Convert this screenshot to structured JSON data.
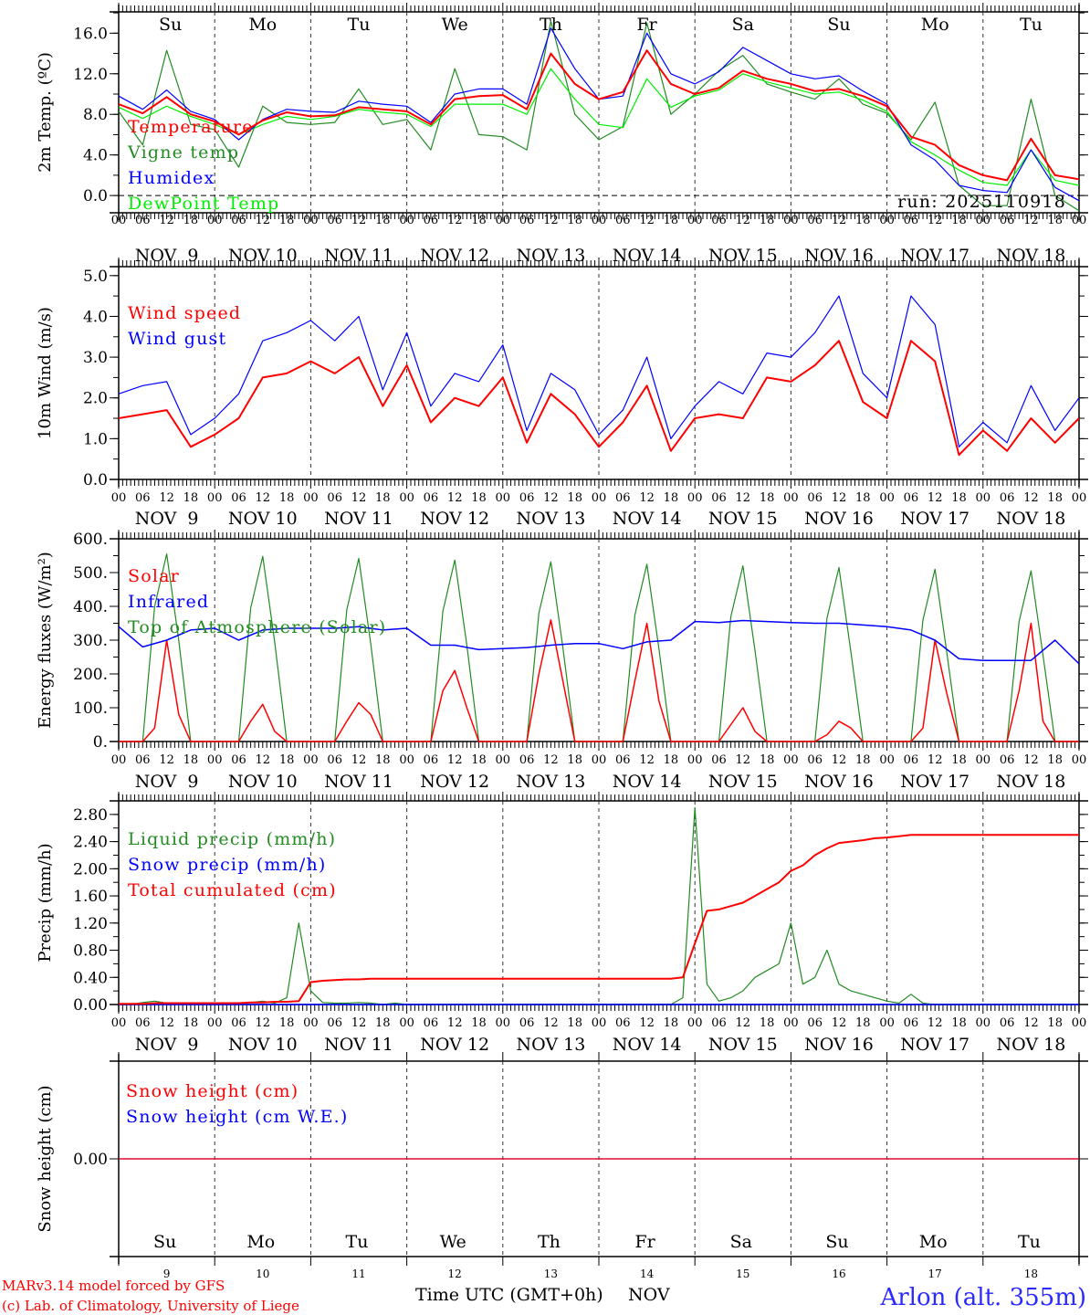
{
  "x_axis": {
    "hour_labels": [
      "00",
      "06",
      "12",
      "18"
    ],
    "date_labels": [
      "NOV  9",
      "NOV 10",
      "NOV 11",
      "NOV 12",
      "NOV 13",
      "NOV 14",
      "NOV 15",
      "NOV 16",
      "NOV 17",
      "NOV 18"
    ],
    "day_of_week": [
      {
        "label": "Su",
        "weekend": true
      },
      {
        "label": "Mo",
        "weekend": false
      },
      {
        "label": "Tu",
        "weekend": false
      },
      {
        "label": "We",
        "weekend": false
      },
      {
        "label": "Th",
        "weekend": false
      },
      {
        "label": "Fr",
        "weekend": false
      },
      {
        "label": "Sa",
        "weekend": true
      },
      {
        "label": "Su",
        "weekend": true
      },
      {
        "label": "Mo",
        "weekend": false
      },
      {
        "label": "Tu",
        "weekend": false
      }
    ],
    "day_numbers": [
      "9",
      "10",
      "11",
      "12",
      "13",
      "14",
      "15",
      "16",
      "17",
      "18"
    ],
    "title": "Time UTC (GMT+0h)",
    "month": "NOV"
  },
  "footer": {
    "model": "MARv3.14 model forced by GFS",
    "credit": "(c) Lab. of Climatology, University of Liege",
    "location": "Arlon (alt. 355m)"
  },
  "colors": {
    "red": "#ff0000",
    "green": "#228b22",
    "blue": "#0000ff",
    "lightgreen": "#00ee00"
  },
  "chart_data": [
    {
      "type": "line",
      "ylabel": "2m Temp. (ºC)",
      "ylim": [
        -1.7,
        18.1
      ],
      "ticks": [
        {
          "v": 0,
          "label": "0.0"
        },
        {
          "v": 4,
          "label": "4.0"
        },
        {
          "v": 8,
          "label": "8.0"
        },
        {
          "v": 12,
          "label": "12.0"
        },
        {
          "v": 16,
          "label": "16.0"
        }
      ],
      "minor_step": 2,
      "zero_line": true,
      "annotation": "run: 2025110918",
      "series": [
        {
          "name": "Vigne temp",
          "color": "#228b22",
          "width": 1.2,
          "step_hours": 6,
          "values": [
            8.3,
            5.0,
            14.3,
            7.0,
            6.5,
            2.8,
            8.8,
            7.2,
            7.0,
            7.2,
            10.5,
            7.0,
            7.5,
            4.5,
            12.5,
            6.0,
            5.8,
            4.5,
            17.2,
            8.0,
            5.5,
            6.8,
            17.0,
            8.0,
            10.0,
            12.3,
            13.8,
            11.0,
            10.2,
            9.5,
            11.5,
            9.0,
            8.1,
            5.5,
            9.2,
            1.0,
            -1.0,
            -1.0,
            9.5,
            0.0,
            -1.5
          ]
        },
        {
          "name": "DewPoint Temp",
          "color": "#00ee00",
          "width": 1.2,
          "step_hours": 6,
          "values": [
            8.7,
            7.6,
            8.8,
            7.8,
            7.0,
            6.0,
            7.0,
            7.8,
            7.5,
            7.8,
            8.5,
            8.2,
            8.0,
            6.8,
            9.0,
            9.0,
            9.0,
            8.0,
            12.5,
            9.5,
            7.0,
            6.7,
            11.5,
            8.7,
            9.8,
            10.4,
            12.0,
            11.2,
            10.6,
            10.0,
            10.2,
            9.4,
            8.3,
            5.3,
            4.0,
            2.5,
            1.3,
            1.0,
            4.5,
            1.5,
            1.0
          ]
        },
        {
          "name": "Humidex",
          "color": "#0000ff",
          "width": 1.2,
          "step_hours": 6,
          "values": [
            9.8,
            8.5,
            10.4,
            8.3,
            7.5,
            5.5,
            7.5,
            8.5,
            8.3,
            8.2,
            9.3,
            9.0,
            8.8,
            7.2,
            10.0,
            10.5,
            10.5,
            9.0,
            16.5,
            12.5,
            9.5,
            9.8,
            16.0,
            12.0,
            11.0,
            12.2,
            14.6,
            13.3,
            12.0,
            11.5,
            11.8,
            10.3,
            9.0,
            5.0,
            3.5,
            1.0,
            0.5,
            0.3,
            4.5,
            0.8,
            -0.5
          ]
        },
        {
          "name": "Temperature",
          "color": "#ff0000",
          "width": 2,
          "step_hours": 6,
          "values": [
            9.0,
            8.1,
            9.7,
            8.0,
            7.3,
            6.0,
            7.4,
            8.2,
            7.8,
            7.9,
            8.7,
            8.5,
            8.3,
            7.0,
            9.5,
            9.8,
            9.9,
            8.5,
            14.0,
            11.0,
            9.5,
            10.2,
            14.3,
            11.0,
            10.0,
            10.6,
            12.3,
            11.5,
            11.0,
            10.3,
            10.5,
            9.8,
            8.8,
            5.8,
            5.0,
            3.0,
            2.0,
            1.5,
            5.6,
            2.0,
            1.6
          ]
        }
      ],
      "legend": [
        {
          "label": "Temperature",
          "color": "#ff0000"
        },
        {
          "label": "Vigne temp",
          "color": "#228b22"
        },
        {
          "label": "Humidex",
          "color": "#0000ff"
        },
        {
          "label": "DewPoint Temp",
          "color": "#00ee00"
        }
      ]
    },
    {
      "type": "line",
      "ylabel": "10m Wind (m/s)",
      "ylim": [
        0,
        5.22
      ],
      "ticks": [
        {
          "v": 0,
          "label": "0.0"
        },
        {
          "v": 1,
          "label": "1.0"
        },
        {
          "v": 2,
          "label": "2.0"
        },
        {
          "v": 3,
          "label": "3.0"
        },
        {
          "v": 4,
          "label": "4.0"
        },
        {
          "v": 5,
          "label": "5.0"
        }
      ],
      "minor_step": 0.5,
      "series": [
        {
          "name": "Wind gust",
          "color": "#0000ff",
          "width": 1.2,
          "step_hours": 6,
          "values": [
            2.1,
            2.3,
            2.4,
            1.1,
            1.5,
            2.1,
            3.4,
            3.6,
            3.9,
            3.4,
            4.0,
            2.2,
            3.6,
            1.8,
            2.6,
            2.4,
            3.3,
            1.2,
            2.6,
            2.2,
            1.1,
            1.7,
            3.0,
            1.0,
            1.8,
            2.4,
            2.1,
            3.1,
            3.0,
            3.6,
            4.5,
            2.6,
            2.0,
            4.5,
            3.8,
            0.8,
            1.4,
            0.9,
            2.3,
            1.2,
            2.0
          ]
        },
        {
          "name": "Wind speed",
          "color": "#ff0000",
          "width": 2,
          "step_hours": 6,
          "values": [
            1.5,
            1.6,
            1.7,
            0.8,
            1.1,
            1.5,
            2.5,
            2.6,
            2.9,
            2.6,
            3.0,
            1.8,
            2.8,
            1.4,
            2.0,
            1.8,
            2.5,
            0.9,
            2.1,
            1.6,
            0.8,
            1.4,
            2.3,
            0.7,
            1.5,
            1.6,
            1.5,
            2.5,
            2.4,
            2.8,
            3.4,
            1.9,
            1.5,
            3.4,
            2.9,
            0.6,
            1.2,
            0.7,
            1.5,
            0.9,
            1.5
          ]
        }
      ],
      "legend": [
        {
          "label": "Wind speed",
          "color": "#ff0000"
        },
        {
          "label": "Wind gust",
          "color": "#0000ff"
        }
      ]
    },
    {
      "type": "line",
      "ylabel": "Energy fluxes (W/m²)",
      "ylim": [
        0,
        600
      ],
      "ticks": [
        {
          "v": 0,
          "label": "0."
        },
        {
          "v": 100,
          "label": "100."
        },
        {
          "v": 200,
          "label": "200."
        },
        {
          "v": 300,
          "label": "300."
        },
        {
          "v": 400,
          "label": "400."
        },
        {
          "v": 500,
          "label": "500."
        },
        {
          "v": 600,
          "label": "600."
        }
      ],
      "minor_step": 50,
      "series": [
        {
          "name": "Top of Atmosphere (Solar)",
          "color": "#228b22",
          "width": 1.2,
          "step_hours": 3,
          "values": [
            0,
            0,
            0,
            400,
            555,
            300,
            0,
            0,
            0,
            0,
            0,
            395,
            548,
            295,
            0,
            0,
            0,
            0,
            0,
            390,
            542,
            290,
            0,
            0,
            0,
            0,
            0,
            385,
            537,
            285,
            0,
            0,
            0,
            0,
            0,
            380,
            532,
            280,
            0,
            0,
            0,
            0,
            0,
            375,
            525,
            275,
            0,
            0,
            0,
            0,
            0,
            370,
            520,
            270,
            0,
            0,
            0,
            0,
            0,
            365,
            515,
            265,
            0,
            0,
            0,
            0,
            0,
            360,
            510,
            260,
            0,
            0,
            0,
            0,
            0,
            355,
            505,
            255,
            0,
            0,
            0
          ]
        },
        {
          "name": "Solar",
          "color": "#ff0000",
          "width": 1.5,
          "step_hours": 3,
          "values": [
            0,
            0,
            0,
            40,
            300,
            80,
            0,
            0,
            0,
            0,
            0,
            60,
            110,
            30,
            0,
            0,
            0,
            0,
            0,
            60,
            115,
            80,
            0,
            0,
            0,
            0,
            0,
            150,
            210,
            100,
            0,
            0,
            0,
            0,
            0,
            200,
            360,
            180,
            0,
            0,
            0,
            0,
            0,
            180,
            350,
            120,
            0,
            0,
            0,
            0,
            0,
            50,
            100,
            30,
            0,
            0,
            0,
            0,
            0,
            20,
            60,
            40,
            0,
            0,
            0,
            0,
            0,
            40,
            300,
            140,
            0,
            0,
            0,
            0,
            0,
            150,
            350,
            60,
            0,
            0,
            0
          ]
        },
        {
          "name": "Infrared",
          "color": "#0000ff",
          "width": 1.5,
          "step_hours": 6,
          "values": [
            340,
            280,
            300,
            330,
            335,
            300,
            330,
            335,
            335,
            335,
            340,
            330,
            335,
            285,
            285,
            272,
            275,
            278,
            285,
            290,
            290,
            275,
            295,
            300,
            355,
            352,
            358,
            355,
            352,
            350,
            350,
            345,
            340,
            330,
            300,
            245,
            240,
            240,
            240,
            300,
            230
          ]
        }
      ],
      "legend": [
        {
          "label": "Solar",
          "color": "#ff0000"
        },
        {
          "label": "Infrared",
          "color": "#0000ff"
        },
        {
          "label": "Top of Atmosphere (Solar)",
          "color": "#228b22"
        }
      ]
    },
    {
      "type": "line",
      "ylabel": "Precip (mm/h)",
      "ylim": [
        0,
        3.0
      ],
      "ticks": [
        {
          "v": 0,
          "label": "0.00"
        },
        {
          "v": 0.4,
          "label": "0.40"
        },
        {
          "v": 0.8,
          "label": "0.80"
        },
        {
          "v": 1.2,
          "label": "1.20"
        },
        {
          "v": 1.6,
          "label": "1.60"
        },
        {
          "v": 2.0,
          "label": "2.00"
        },
        {
          "v": 2.4,
          "label": "2.40"
        },
        {
          "v": 2.8,
          "label": "2.80"
        }
      ],
      "minor_step": 0.2,
      "series": [
        {
          "name": "Liquid precip (mm/h)",
          "color": "#228b22",
          "width": 1.2,
          "step_hours": 3,
          "values": [
            0,
            0,
            0.03,
            0.05,
            0.02,
            0.02,
            0,
            0,
            0,
            0,
            0,
            0.03,
            0.05,
            0.02,
            0.1,
            1.2,
            0.2,
            0.03,
            0.02,
            0.02,
            0.03,
            0.02,
            0,
            0.02,
            0,
            0,
            0,
            0,
            0,
            0,
            0,
            0,
            0,
            0,
            0,
            0,
            0,
            0,
            0,
            0,
            0,
            0,
            0,
            0,
            0,
            0,
            0,
            0.1,
            2.9,
            0.3,
            0.05,
            0.1,
            0.2,
            0.4,
            0.5,
            0.6,
            1.2,
            0.3,
            0.4,
            0.8,
            0.3,
            0.2,
            0.15,
            0.1,
            0.05,
            0.02,
            0.15,
            0.02,
            0,
            0,
            0,
            0,
            0,
            0,
            0,
            0,
            0,
            0,
            0,
            0,
            0
          ]
        },
        {
          "name": "Snow precip (mm/h)",
          "color": "#0000ff",
          "width": 1.5,
          "step_hours": 240,
          "values": [
            0,
            0
          ]
        },
        {
          "name": "Total cumulated (cm)",
          "color": "#ff0000",
          "width": 2,
          "step_hours": 3,
          "values": [
            0.01,
            0.01,
            0.01,
            0.02,
            0.02,
            0.02,
            0.02,
            0.02,
            0.02,
            0.02,
            0.02,
            0.03,
            0.03,
            0.04,
            0.04,
            0.05,
            0.33,
            0.35,
            0.36,
            0.37,
            0.37,
            0.38,
            0.38,
            0.38,
            0.38,
            0.38,
            0.38,
            0.38,
            0.38,
            0.38,
            0.38,
            0.38,
            0.38,
            0.38,
            0.38,
            0.38,
            0.38,
            0.38,
            0.38,
            0.38,
            0.38,
            0.38,
            0.38,
            0.38,
            0.38,
            0.38,
            0.38,
            0.4,
            0.9,
            1.38,
            1.4,
            1.45,
            1.5,
            1.6,
            1.7,
            1.8,
            1.97,
            2.05,
            2.2,
            2.3,
            2.38,
            2.4,
            2.42,
            2.45,
            2.46,
            2.48,
            2.5,
            2.5,
            2.5,
            2.5,
            2.5,
            2.5,
            2.5,
            2.5,
            2.5,
            2.5,
            2.5,
            2.5,
            2.5,
            2.5,
            2.5
          ]
        }
      ],
      "legend": [
        {
          "label": "Liquid precip (mm/h)",
          "color": "#228b22"
        },
        {
          "label": "Snow precip (mm/h)",
          "color": "#0000ff"
        },
        {
          "label": "Total cumulated (cm)",
          "color": "#ff0000"
        }
      ]
    },
    {
      "type": "line",
      "ylabel": "Snow height (cm)",
      "ylim": [
        -1,
        1
      ],
      "ticks": [
        {
          "v": 0,
          "label": "0.00"
        }
      ],
      "minor_step": 0,
      "series": [
        {
          "name": "Snow height (cm W.E.)",
          "color": "#0000ff",
          "width": 1.2,
          "step_hours": 240,
          "values": [
            0,
            0
          ]
        },
        {
          "name": "Snow height (cm)",
          "color": "#ff0000",
          "width": 1.2,
          "step_hours": 240,
          "values": [
            0,
            0
          ]
        }
      ],
      "legend": [
        {
          "label": "Snow height (cm)",
          "color": "#ff0000"
        },
        {
          "label": "Snow height (cm W.E.)",
          "color": "#0000ff"
        }
      ]
    }
  ]
}
